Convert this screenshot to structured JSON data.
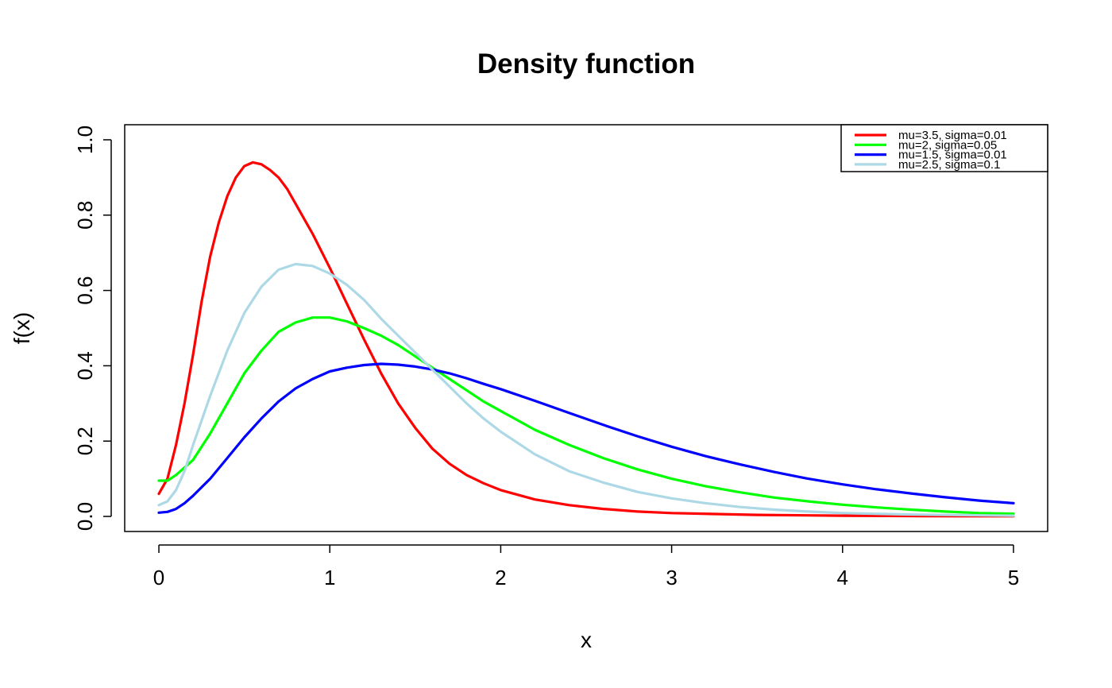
{
  "chart_data": {
    "type": "line",
    "title": "Density function",
    "xlabel": "x",
    "ylabel": "f(x)",
    "xlim": [
      -0.2,
      5.2
    ],
    "ylim": [
      -0.04,
      1.04
    ],
    "x_ticks": [
      "0",
      "1",
      "2",
      "3",
      "4",
      "5"
    ],
    "y_ticks": [
      "0.0",
      "0.2",
      "0.4",
      "0.6",
      "0.8",
      "1.0"
    ],
    "grid": false,
    "legend_position": "top-right",
    "series": [
      {
        "name": "mu=3.5, sigma=0.01",
        "color": "#ff0000",
        "points": [
          [
            0,
            0.06
          ],
          [
            0.05,
            0.1
          ],
          [
            0.1,
            0.19
          ],
          [
            0.15,
            0.3
          ],
          [
            0.2,
            0.43
          ],
          [
            0.25,
            0.57
          ],
          [
            0.3,
            0.69
          ],
          [
            0.35,
            0.78
          ],
          [
            0.4,
            0.85
          ],
          [
            0.45,
            0.9
          ],
          [
            0.5,
            0.93
          ],
          [
            0.55,
            0.94
          ],
          [
            0.6,
            0.935
          ],
          [
            0.65,
            0.92
          ],
          [
            0.7,
            0.9
          ],
          [
            0.75,
            0.87
          ],
          [
            0.8,
            0.83
          ],
          [
            0.9,
            0.75
          ],
          [
            1.0,
            0.66
          ],
          [
            1.1,
            0.565
          ],
          [
            1.2,
            0.47
          ],
          [
            1.3,
            0.38
          ],
          [
            1.4,
            0.3
          ],
          [
            1.5,
            0.235
          ],
          [
            1.6,
            0.18
          ],
          [
            1.7,
            0.14
          ],
          [
            1.8,
            0.11
          ],
          [
            1.9,
            0.088
          ],
          [
            2.0,
            0.07
          ],
          [
            2.2,
            0.045
          ],
          [
            2.4,
            0.03
          ],
          [
            2.6,
            0.02
          ],
          [
            2.8,
            0.013
          ],
          [
            3.0,
            0.009
          ],
          [
            3.5,
            0.004
          ],
          [
            4.0,
            0.002
          ],
          [
            4.5,
            0.001
          ],
          [
            5.0,
            0.0006
          ]
        ]
      },
      {
        "name": "mu=2, sigma=0.05",
        "color": "#00ff00",
        "points": [
          [
            0,
            0.095
          ],
          [
            0.05,
            0.095
          ],
          [
            0.1,
            0.11
          ],
          [
            0.2,
            0.15
          ],
          [
            0.3,
            0.22
          ],
          [
            0.4,
            0.3
          ],
          [
            0.5,
            0.38
          ],
          [
            0.6,
            0.44
          ],
          [
            0.7,
            0.49
          ],
          [
            0.8,
            0.515
          ],
          [
            0.9,
            0.528
          ],
          [
            1.0,
            0.528
          ],
          [
            1.1,
            0.518
          ],
          [
            1.2,
            0.5
          ],
          [
            1.3,
            0.48
          ],
          [
            1.4,
            0.455
          ],
          [
            1.5,
            0.425
          ],
          [
            1.6,
            0.395
          ],
          [
            1.7,
            0.365
          ],
          [
            1.8,
            0.335
          ],
          [
            1.9,
            0.305
          ],
          [
            2.0,
            0.28
          ],
          [
            2.2,
            0.23
          ],
          [
            2.4,
            0.19
          ],
          [
            2.6,
            0.155
          ],
          [
            2.8,
            0.125
          ],
          [
            3.0,
            0.1
          ],
          [
            3.2,
            0.08
          ],
          [
            3.4,
            0.064
          ],
          [
            3.6,
            0.05
          ],
          [
            3.8,
            0.04
          ],
          [
            4.0,
            0.031
          ],
          [
            4.2,
            0.024
          ],
          [
            4.4,
            0.018
          ],
          [
            4.6,
            0.013
          ],
          [
            4.8,
            0.009
          ],
          [
            5.0,
            0.007
          ]
        ]
      },
      {
        "name": "mu=1.5, sigma=0.01",
        "color": "#0000ff",
        "points": [
          [
            0,
            0.01
          ],
          [
            0.05,
            0.012
          ],
          [
            0.1,
            0.02
          ],
          [
            0.15,
            0.035
          ],
          [
            0.2,
            0.055
          ],
          [
            0.3,
            0.1
          ],
          [
            0.4,
            0.155
          ],
          [
            0.5,
            0.21
          ],
          [
            0.6,
            0.26
          ],
          [
            0.7,
            0.305
          ],
          [
            0.8,
            0.34
          ],
          [
            0.9,
            0.365
          ],
          [
            1.0,
            0.385
          ],
          [
            1.1,
            0.395
          ],
          [
            1.2,
            0.402
          ],
          [
            1.3,
            0.405
          ],
          [
            1.4,
            0.403
          ],
          [
            1.5,
            0.398
          ],
          [
            1.6,
            0.39
          ],
          [
            1.7,
            0.38
          ],
          [
            1.8,
            0.367
          ],
          [
            1.9,
            0.352
          ],
          [
            2.0,
            0.338
          ],
          [
            2.2,
            0.307
          ],
          [
            2.4,
            0.275
          ],
          [
            2.6,
            0.243
          ],
          [
            2.8,
            0.213
          ],
          [
            3.0,
            0.185
          ],
          [
            3.2,
            0.16
          ],
          [
            3.4,
            0.138
          ],
          [
            3.6,
            0.118
          ],
          [
            3.8,
            0.1
          ],
          [
            4.0,
            0.085
          ],
          [
            4.2,
            0.072
          ],
          [
            4.4,
            0.061
          ],
          [
            4.6,
            0.051
          ],
          [
            4.8,
            0.042
          ],
          [
            5.0,
            0.035
          ]
        ]
      },
      {
        "name": "mu=2.5, sigma=0.1",
        "color": "#add8e6",
        "points": [
          [
            0,
            0.03
          ],
          [
            0.05,
            0.04
          ],
          [
            0.1,
            0.07
          ],
          [
            0.15,
            0.12
          ],
          [
            0.2,
            0.19
          ],
          [
            0.3,
            0.32
          ],
          [
            0.4,
            0.44
          ],
          [
            0.5,
            0.54
          ],
          [
            0.6,
            0.61
          ],
          [
            0.7,
            0.655
          ],
          [
            0.8,
            0.67
          ],
          [
            0.9,
            0.665
          ],
          [
            1.0,
            0.645
          ],
          [
            1.1,
            0.615
          ],
          [
            1.2,
            0.575
          ],
          [
            1.3,
            0.525
          ],
          [
            1.4,
            0.48
          ],
          [
            1.5,
            0.435
          ],
          [
            1.6,
            0.39
          ],
          [
            1.7,
            0.345
          ],
          [
            1.8,
            0.3
          ],
          [
            1.9,
            0.26
          ],
          [
            2.0,
            0.225
          ],
          [
            2.2,
            0.165
          ],
          [
            2.4,
            0.12
          ],
          [
            2.6,
            0.09
          ],
          [
            2.8,
            0.065
          ],
          [
            3.0,
            0.048
          ],
          [
            3.2,
            0.035
          ],
          [
            3.4,
            0.025
          ],
          [
            3.6,
            0.018
          ],
          [
            3.8,
            0.013
          ],
          [
            4.0,
            0.009
          ],
          [
            4.4,
            0.005
          ],
          [
            5.0,
            0.002
          ]
        ]
      }
    ]
  }
}
